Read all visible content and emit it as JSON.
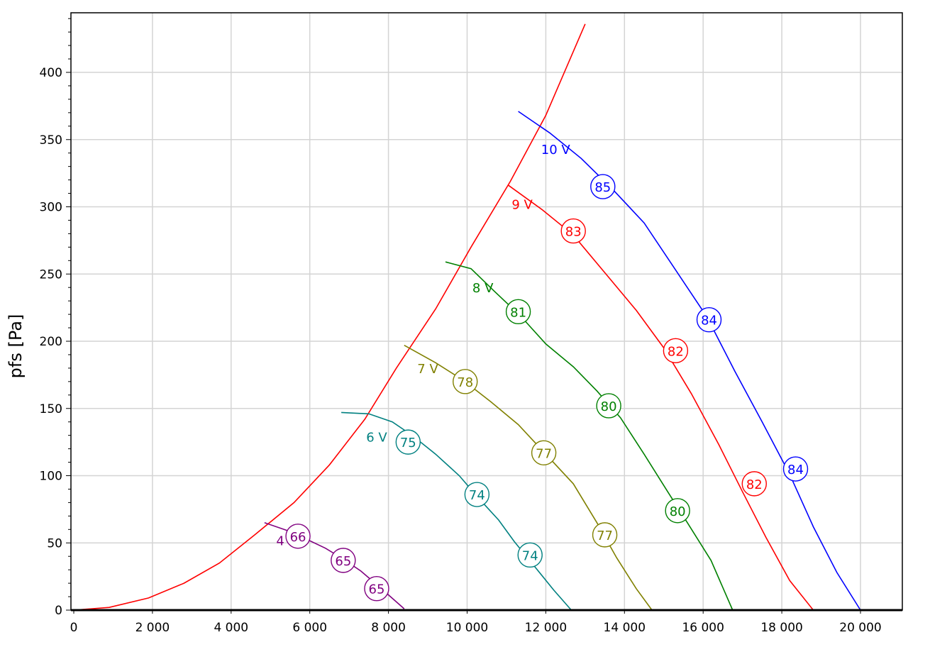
{
  "chart_data": {
    "type": "line",
    "xlabel": "",
    "ylabel": "pfs [Pa]",
    "xlim": [
      0,
      20900
    ],
    "ylim": [
      0,
      445
    ],
    "x_ticks": [
      0,
      2000,
      4000,
      6000,
      8000,
      10000,
      12000,
      14000,
      16000,
      18000,
      20000
    ],
    "x_tick_labels": [
      "0",
      "2 000",
      "4 000",
      "6 000",
      "8 000",
      "10 000",
      "12 000",
      "14 000",
      "16 000",
      "18 000",
      "20 000"
    ],
    "y_ticks": [
      0,
      50,
      100,
      150,
      200,
      250,
      300,
      350,
      400
    ],
    "y_tick_labels": [
      "0",
      "50",
      "100",
      "150",
      "200",
      "250",
      "300",
      "350",
      "400"
    ],
    "grid": true,
    "system_curve": {
      "color": "#ff0000",
      "points": [
        [
          0,
          0
        ],
        [
          900,
          2
        ],
        [
          1900,
          9
        ],
        [
          2800,
          20
        ],
        [
          3700,
          35
        ],
        [
          4600,
          56
        ],
        [
          5600,
          80
        ],
        [
          6500,
          108
        ],
        [
          7400,
          142
        ],
        [
          8200,
          180
        ],
        [
          9200,
          224
        ],
        [
          10100,
          270
        ],
        [
          11100,
          319
        ],
        [
          12000,
          368
        ],
        [
          13000,
          436
        ]
      ]
    },
    "series": [
      {
        "name": "4",
        "color": "#800080",
        "points": [
          [
            4850,
            65
          ],
          [
            5450,
            59
          ],
          [
            5900,
            53
          ],
          [
            6400,
            46
          ],
          [
            6850,
            38
          ],
          [
            7300,
            29
          ],
          [
            7700,
            19
          ],
          [
            8050,
            10
          ],
          [
            8400,
            1
          ]
        ],
        "label": {
          "text": "4",
          "x": 5250,
          "y": 52
        },
        "markers": [
          {
            "x": 5700,
            "y": 55,
            "text": "66"
          },
          {
            "x": 6850,
            "y": 37,
            "text": "65"
          },
          {
            "x": 7700,
            "y": 16,
            "text": "65"
          }
        ]
      },
      {
        "name": "6 V",
        "color": "#008080",
        "points": [
          [
            6800,
            147
          ],
          [
            7500,
            146
          ],
          [
            8100,
            140
          ],
          [
            8600,
            130
          ],
          [
            9200,
            116
          ],
          [
            9800,
            100
          ],
          [
            10300,
            83
          ],
          [
            10800,
            67
          ],
          [
            11200,
            51
          ],
          [
            11700,
            33
          ],
          [
            12200,
            15
          ],
          [
            12650,
            0
          ]
        ],
        "label": {
          "text": "6 V",
          "x": 7700,
          "y": 129
        },
        "markers": [
          {
            "x": 8500,
            "y": 125,
            "text": "75"
          },
          {
            "x": 10250,
            "y": 86,
            "text": "74"
          },
          {
            "x": 11600,
            "y": 41,
            "text": "74"
          }
        ]
      },
      {
        "name": "7 V",
        "color": "#808000",
        "points": [
          [
            8400,
            197
          ],
          [
            9200,
            184
          ],
          [
            9900,
            171
          ],
          [
            10600,
            155
          ],
          [
            11300,
            138
          ],
          [
            12000,
            116
          ],
          [
            12700,
            94
          ],
          [
            13300,
            65
          ],
          [
            13800,
            39
          ],
          [
            14300,
            16
          ],
          [
            14700,
            0
          ]
        ],
        "label": {
          "text": "7 V",
          "x": 9000,
          "y": 180
        },
        "markers": [
          {
            "x": 9950,
            "y": 170,
            "text": "78"
          },
          {
            "x": 11950,
            "y": 117,
            "text": "77"
          },
          {
            "x": 13500,
            "y": 56,
            "text": "77"
          }
        ]
      },
      {
        "name": "8 V",
        "color": "#008000",
        "points": [
          [
            9450,
            259
          ],
          [
            10100,
            254
          ],
          [
            10700,
            237
          ],
          [
            11350,
            219
          ],
          [
            12000,
            198
          ],
          [
            12700,
            181
          ],
          [
            13300,
            163
          ],
          [
            13900,
            143
          ],
          [
            14500,
            116
          ],
          [
            15100,
            88
          ],
          [
            15600,
            65
          ],
          [
            16200,
            37
          ],
          [
            16750,
            0
          ]
        ],
        "label": {
          "text": "8 V",
          "x": 10400,
          "y": 240
        },
        "markers": [
          {
            "x": 11300,
            "y": 222,
            "text": "81"
          },
          {
            "x": 13600,
            "y": 152,
            "text": "80"
          },
          {
            "x": 15350,
            "y": 74,
            "text": "80"
          }
        ]
      },
      {
        "name": "9 V",
        "color": "#ff0000",
        "points": [
          [
            11050,
            316
          ],
          [
            11900,
            298
          ],
          [
            12700,
            279
          ],
          [
            13500,
            251
          ],
          [
            14300,
            223
          ],
          [
            15000,
            195
          ],
          [
            15700,
            161
          ],
          [
            16400,
            123
          ],
          [
            17000,
            88
          ],
          [
            17600,
            54
          ],
          [
            18200,
            22
          ],
          [
            18800,
            0
          ]
        ],
        "label": {
          "text": "9 V",
          "x": 11400,
          "y": 302
        },
        "markers": [
          {
            "x": 12700,
            "y": 282,
            "text": "83"
          },
          {
            "x": 15300,
            "y": 193,
            "text": "82"
          },
          {
            "x": 17300,
            "y": 94,
            "text": "82"
          }
        ]
      },
      {
        "name": "10 V",
        "color": "#0000ff",
        "points": [
          [
            11300,
            371
          ],
          [
            12100,
            355
          ],
          [
            12900,
            336
          ],
          [
            13700,
            313
          ],
          [
            14500,
            288
          ],
          [
            15300,
            253
          ],
          [
            16100,
            218
          ],
          [
            16800,
            178
          ],
          [
            17500,
            140
          ],
          [
            18200,
            101
          ],
          [
            18800,
            62
          ],
          [
            19400,
            28
          ],
          [
            20000,
            0
          ]
        ],
        "label": {
          "text": "10 V",
          "x": 12250,
          "y": 343
        },
        "markers": [
          {
            "x": 13450,
            "y": 315,
            "text": "85"
          },
          {
            "x": 16150,
            "y": 216,
            "text": "84"
          },
          {
            "x": 18350,
            "y": 105,
            "text": "84"
          }
        ]
      }
    ]
  }
}
